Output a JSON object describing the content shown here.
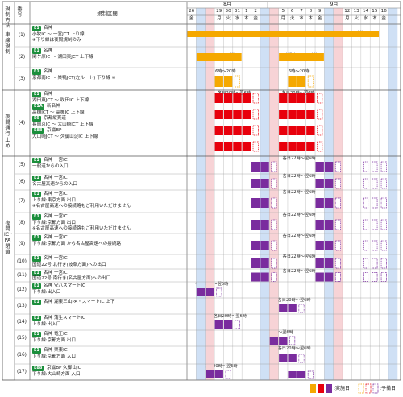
{
  "header": {
    "method_label": "規制方法",
    "num_label": "番号",
    "section_label": "規制区間",
    "month_aug": "8月",
    "month_sep": "9月"
  },
  "days": [
    {
      "d": "26",
      "w": "金",
      "c": "none"
    },
    {
      "d": "27",
      "w": "土",
      "c": "blue"
    },
    {
      "d": "28",
      "w": "日",
      "c": "red"
    },
    {
      "d": "29",
      "w": "月",
      "c": "none"
    },
    {
      "d": "30",
      "w": "火",
      "c": "none"
    },
    {
      "d": "31",
      "w": "水",
      "c": "none"
    },
    {
      "d": "1",
      "w": "木",
      "c": "none"
    },
    {
      "d": "2",
      "w": "金",
      "c": "none"
    },
    {
      "d": "3",
      "w": "土",
      "c": "blue"
    },
    {
      "d": "4",
      "w": "日",
      "c": "red"
    },
    {
      "d": "5",
      "w": "月",
      "c": "none"
    },
    {
      "d": "6",
      "w": "火",
      "c": "none"
    },
    {
      "d": "7",
      "w": "水",
      "c": "none"
    },
    {
      "d": "8",
      "w": "木",
      "c": "none"
    },
    {
      "d": "9",
      "w": "金",
      "c": "none"
    },
    {
      "d": "10",
      "w": "土",
      "c": "blue"
    },
    {
      "d": "11",
      "w": "日",
      "c": "red"
    },
    {
      "d": "12",
      "w": "月",
      "c": "none"
    },
    {
      "d": "13",
      "w": "火",
      "c": "none"
    },
    {
      "d": "14",
      "w": "水",
      "c": "none"
    },
    {
      "d": "15",
      "w": "木",
      "c": "none"
    },
    {
      "d": "16",
      "w": "金",
      "c": "none"
    },
    {
      "d": "17",
      "w": "土",
      "c": "blue"
    }
  ],
  "methods": [
    {
      "label": "車線規制"
    },
    {
      "label": "夜間通行止め"
    },
    {
      "label": "夜間IC・PA閉鎖"
    }
  ],
  "rows": [
    {
      "num": "(1)",
      "lines": [
        {
          "badge": "E1",
          "route": "名神"
        },
        {
          "text": "小牧IC ～ 一宮JCT 上り線"
        },
        {
          "text": "※下り線は夜間規制のみ"
        }
      ],
      "anns": [
        {
          "text": "22時開始"
        },
        {
          "text": "6時終了"
        }
      ]
    },
    {
      "num": "(2)",
      "lines": [
        {
          "badge": "E1",
          "route": "名神"
        },
        {
          "text": "関ケ原IC ～ 湖田東JCT 上下線"
        }
      ],
      "anns": [
        {
          "text": "0時開始"
        },
        {
          "text": "6時終了"
        },
        {
          "text": "0時開始"
        },
        {
          "text": "6時終了"
        }
      ]
    },
    {
      "num": "(3)",
      "lines": [
        {
          "badge": "E1",
          "route": "名神"
        },
        {
          "text": "京都南IC ～ 巣鴨JCT(左ルート) 下り線 ※"
        }
      ],
      "anns": [
        {
          "text": "6時～20時"
        },
        {
          "text": "6時～20時"
        }
      ]
    },
    {
      "num": "(4)",
      "lines": [
        {
          "badge": "E1",
          "route": "名神"
        },
        {
          "text": "湖田東JCT ～ 吹田IC 上下線"
        },
        {
          "badge": "E1A",
          "route": "新名神"
        },
        {
          "text": "高槻JCT ～ 高槻IC 上下線"
        },
        {
          "badge": "E9",
          "route": "京都縦貫道"
        },
        {
          "text": "長岡京IC ～ 大山崎JCT 上下線"
        },
        {
          "badge": "E88",
          "route": "京滋BP"
        },
        {
          "text": "大山崎JCT ～ 久御山淀IC 上下線"
        }
      ],
      "anns": [
        {
          "text": "各日20時～翌6時"
        },
        {
          "text": "各日20時～翌6時"
        }
      ]
    },
    {
      "num": "(5)",
      "lines": [
        {
          "badge": "E1",
          "route": "名神 一宮IC"
        },
        {
          "text": "一般道からの入口"
        }
      ],
      "anns": [
        {
          "text": "各日22時～翌6時"
        }
      ]
    },
    {
      "num": "(6)",
      "lines": [
        {
          "badge": "E1",
          "route": "名神 一宮IC"
        },
        {
          "text": "名古屋高速からの入口"
        }
      ],
      "anns": [
        {
          "text": "各日22時～翌6時"
        }
      ]
    },
    {
      "num": "(7)",
      "lines": [
        {
          "badge": "E1",
          "route": "名神 一宮IC"
        },
        {
          "text": "上り線:東京方面 出口"
        },
        {
          "text": "※名古屋高速への接続路もご利用いただけません"
        }
      ],
      "anns": [
        {
          "text": "各日22時～翌6時"
        }
      ]
    },
    {
      "num": "(8)",
      "lines": [
        {
          "badge": "E1",
          "route": "名神 一宮IC"
        },
        {
          "text": "下り線:京都方面 出口"
        },
        {
          "text": "※名古屋高速への接続路もご利用いただけません"
        }
      ],
      "anns": [
        {
          "text": "各日22時～翌6時"
        }
      ]
    },
    {
      "num": "(9)",
      "lines": [
        {
          "badge": "E1",
          "route": "名神 一宮IC"
        },
        {
          "text": "下り線:京都方面 から名古屋高速への接続路"
        }
      ],
      "anns": [
        {
          "text": "各日22時～翌6時"
        }
      ]
    },
    {
      "num": "(10)",
      "lines": [
        {
          "badge": "E1",
          "route": "名神 一宮IC"
        },
        {
          "text": "国道22号 北行き(岐阜方面)への出口"
        }
      ],
      "anns": [
        {
          "text": "各日22時～翌6時"
        }
      ]
    },
    {
      "num": "(11)",
      "lines": [
        {
          "badge": "E1",
          "route": "名神 一宮IC"
        },
        {
          "text": "国道22号 南行き(名古屋方面)への出口"
        }
      ],
      "anns": [
        {
          "text": "各日22時～翌6時"
        }
      ]
    },
    {
      "num": "(12)",
      "lines": [
        {
          "badge": "E1",
          "route": "名神 安八スマートIC"
        },
        {
          "text": "下り線:出入口"
        }
      ],
      "anns": [
        {
          "text": "各日20時～翌6時"
        }
      ]
    },
    {
      "num": "(13)",
      "lines": [
        {
          "badge": "E1",
          "route": "名神 湖東三山PA・スマートIC 上下"
        }
      ],
      "anns": [
        {
          "text": "各日20時～翌6時"
        }
      ]
    },
    {
      "num": "(14)",
      "lines": [
        {
          "badge": "E1",
          "route": "名神 蒲生スマートIC"
        },
        {
          "text": "上り線:出入口"
        }
      ],
      "anns": [
        {
          "text": "各日20時～翌6時"
        }
      ]
    },
    {
      "num": "(15)",
      "lines": [
        {
          "badge": "E1",
          "route": "名神 竜王IC"
        },
        {
          "text": "下り線:京都方面 出口"
        }
      ],
      "anns": [
        {
          "text": "20時～翌6時"
        }
      ]
    },
    {
      "num": "(16)",
      "lines": [
        {
          "badge": "E1",
          "route": "名神 栗東IC"
        },
        {
          "text": "下り線:京都方面 入口"
        }
      ],
      "anns": [
        {
          "text": "各日20時～翌6時"
        }
      ]
    },
    {
      "num": "(17)",
      "lines": [
        {
          "badge": "E88",
          "route": "京滋BP 久御山IC"
        },
        {
          "text": "下り線:大山崎方面 入口"
        }
      ],
      "anns": [
        {
          "text": "各日20時～翌6時"
        }
      ]
    }
  ],
  "legend": {
    "done_label": ":実施日",
    "reserve_label": ":予備日"
  },
  "colors": {
    "orange": "#f5a800",
    "red": "#e8000c",
    "purple": "#7a2c9e",
    "green": "#0b8f4a",
    "blue_col": "#cfe0f5",
    "red_col": "#f7d3d6"
  }
}
